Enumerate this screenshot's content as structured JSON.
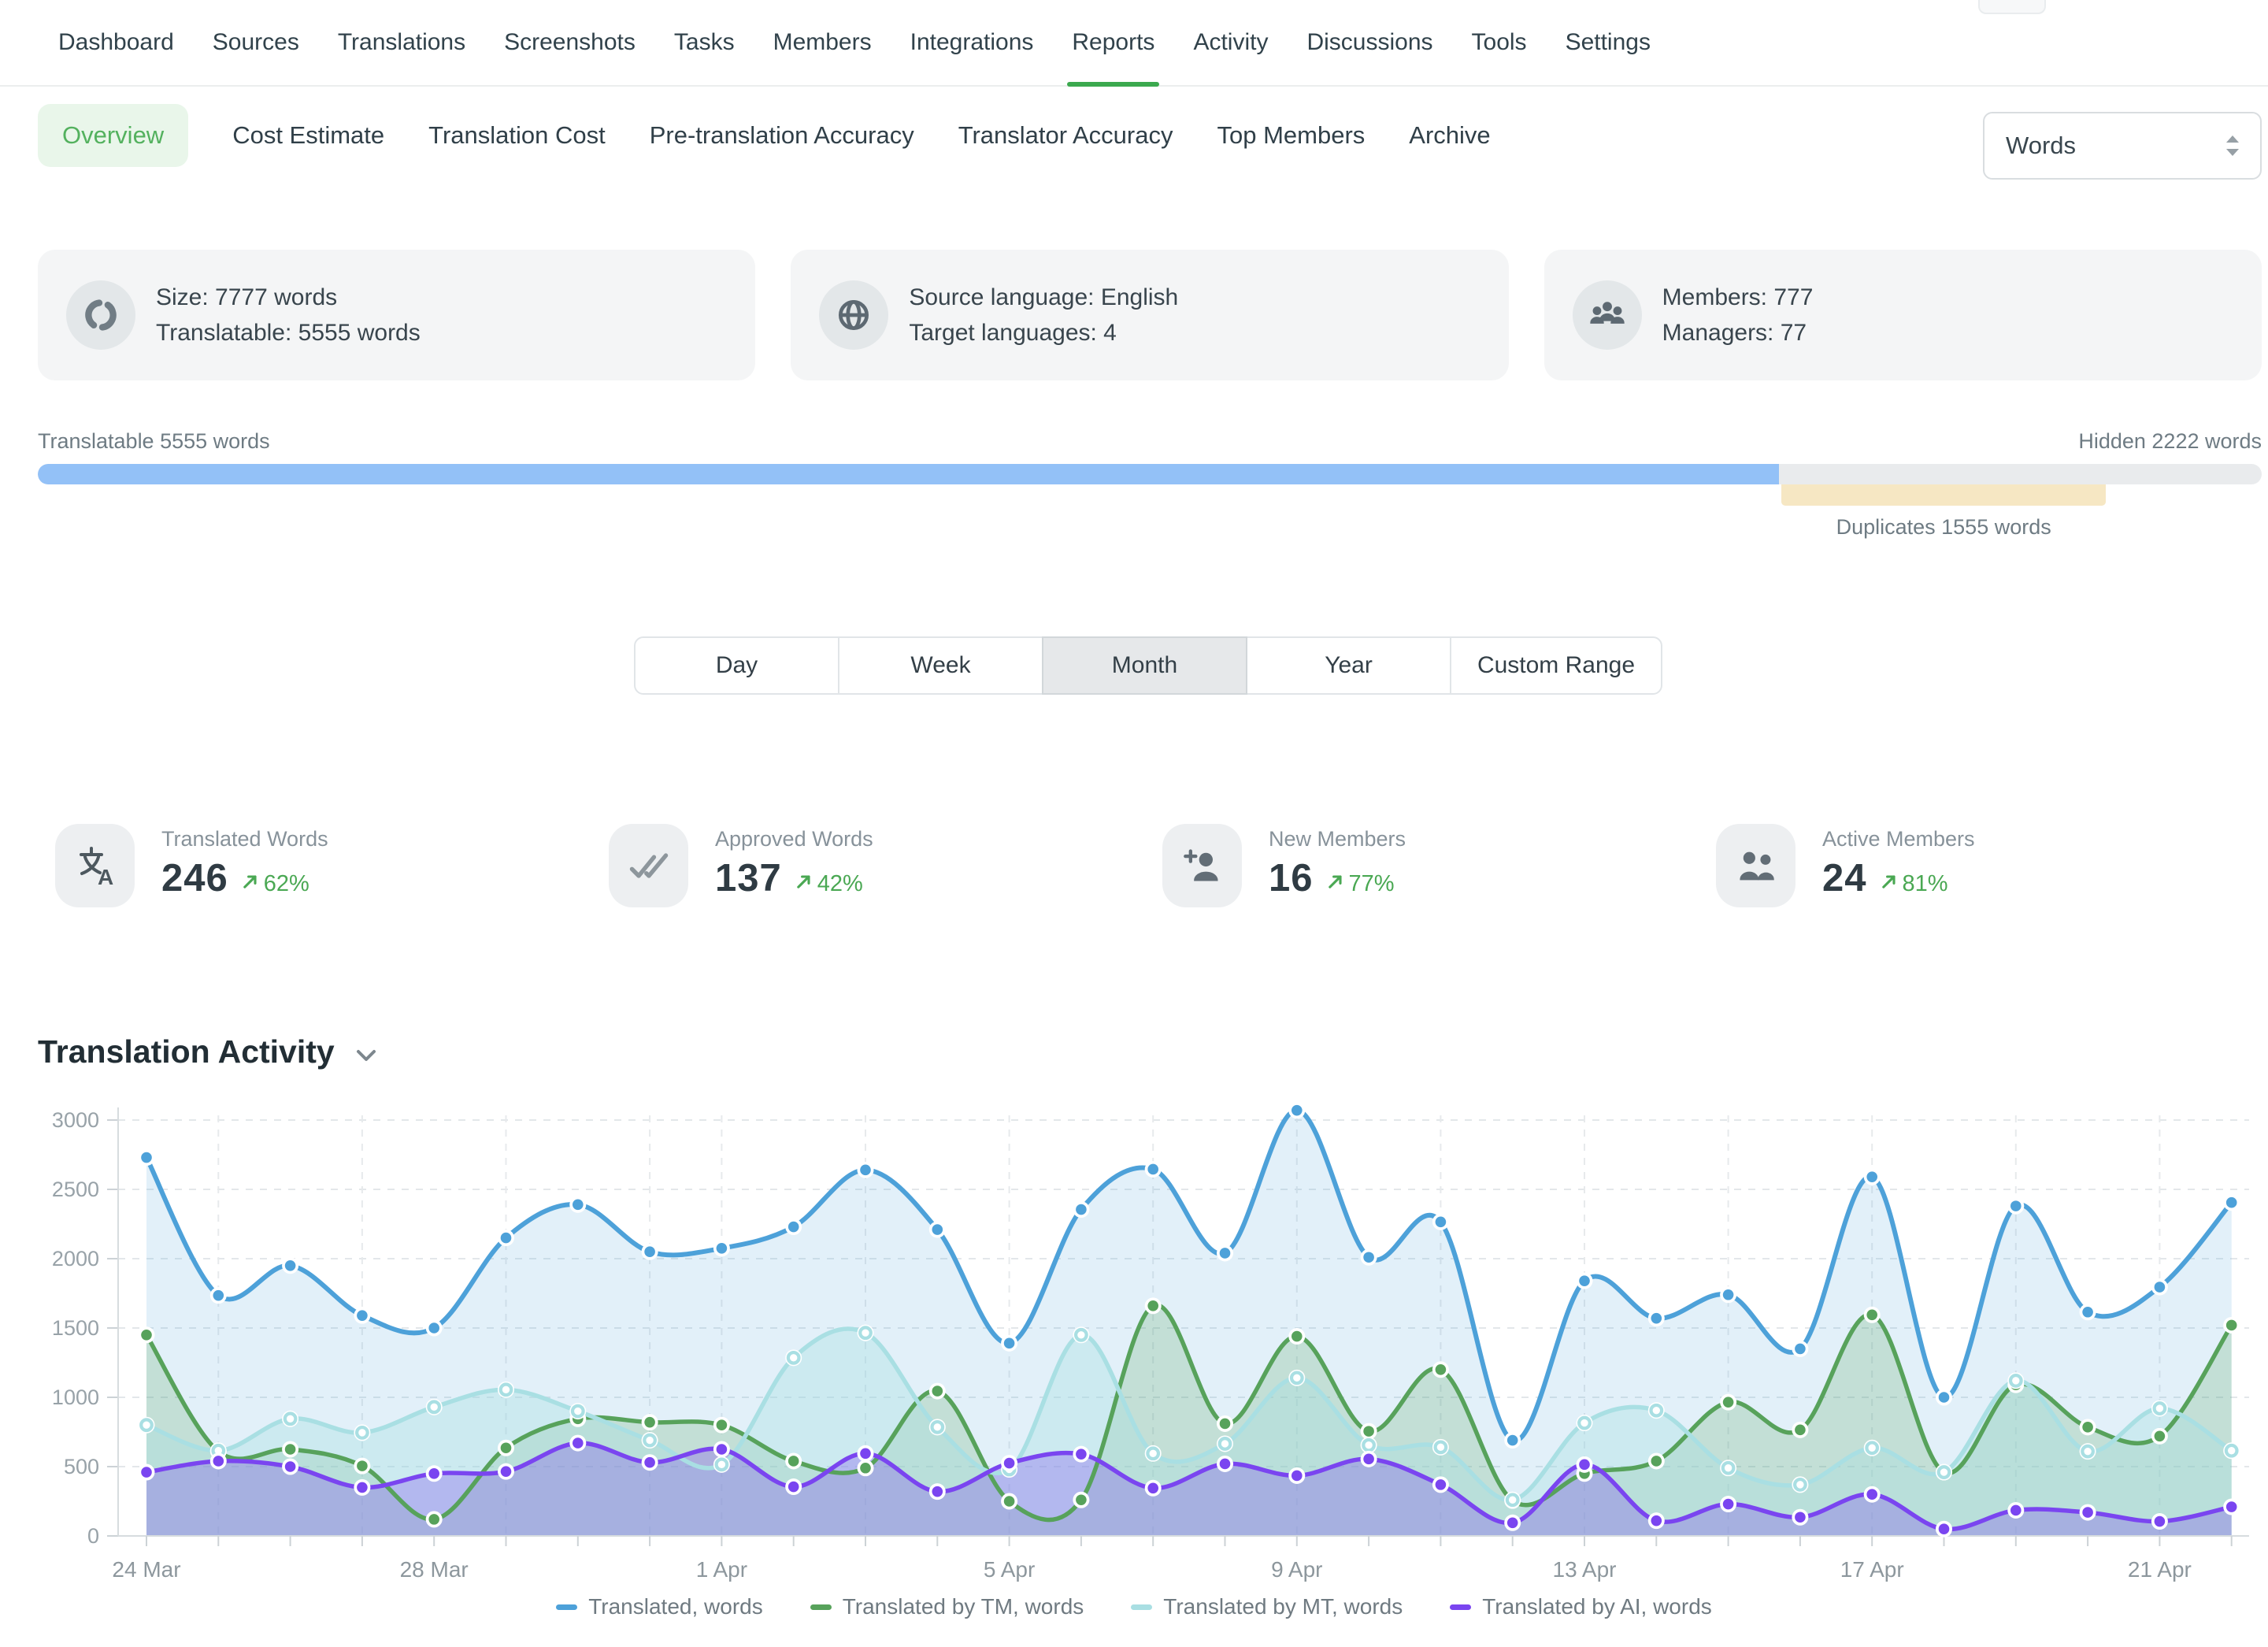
{
  "nav": {
    "items": [
      "Dashboard",
      "Sources",
      "Translations",
      "Screenshots",
      "Tasks",
      "Members",
      "Integrations",
      "Reports",
      "Activity",
      "Discussions",
      "Tools",
      "Settings"
    ],
    "active": "Reports",
    "accent_color": "#3ba94e"
  },
  "subnav": {
    "items": [
      "Overview",
      "Cost Estimate",
      "Translation Cost",
      "Pre-translation Accuracy",
      "Translator Accuracy",
      "Top Members",
      "Archive"
    ],
    "active": "Overview",
    "unit_select": {
      "value": "Words"
    }
  },
  "summary_cards": [
    {
      "icon": "donut-icon",
      "lines": [
        "Size: 7777 words",
        "Translatable: 5555 words"
      ]
    },
    {
      "icon": "globe-icon",
      "lines": [
        "Source language: English",
        "Target languages: 4"
      ]
    },
    {
      "icon": "members-icon",
      "lines": [
        "Members: 777",
        "Managers: 77"
      ]
    }
  ],
  "progress": {
    "left_label": "Translatable 5555 words",
    "right_label": "Hidden 2222 words",
    "duplicates_label": "Duplicates 1555 words",
    "translatable_pct": 78.3,
    "duplicates_start_pct": 78.4,
    "duplicates_end_pct": 93.0,
    "bar_color": "#93c1f7",
    "track_color": "#e9ebed",
    "duplicates_color": "#f6e7c3"
  },
  "range_tabs": {
    "options": [
      "Day",
      "Week",
      "Month",
      "Year",
      "Custom Range"
    ],
    "active": "Month"
  },
  "stats": [
    {
      "icon": "translate-icon",
      "label": "Translated Words",
      "value": "246",
      "change": "62%"
    },
    {
      "icon": "double-check-icon",
      "label": "Approved Words",
      "value": "137",
      "change": "42%"
    },
    {
      "icon": "person-add-icon",
      "label": "New Members",
      "value": "16",
      "change": "77%"
    },
    {
      "icon": "people-icon",
      "label": "Active Members",
      "value": "24",
      "change": "81%"
    }
  ],
  "section": {
    "title": "Translation Activity"
  },
  "chart_data": {
    "type": "area",
    "title": "Translation Activity",
    "x": [
      "24 Mar",
      "25 Mar",
      "26 Mar",
      "27 Mar",
      "28 Mar",
      "29 Mar",
      "30 Mar",
      "31 Mar",
      "1 Apr",
      "2 Apr",
      "3 Apr",
      "4 Apr",
      "5 Apr",
      "6 Apr",
      "7 Apr",
      "8 Apr",
      "9 Apr",
      "10 Apr",
      "11 Apr",
      "12 Apr",
      "13 Apr",
      "14 Apr",
      "15 Apr",
      "16 Apr",
      "17 Apr",
      "18 Apr",
      "19 Apr",
      "20 Apr",
      "21 Apr",
      "22 Apr"
    ],
    "x_axis_labels": [
      "24 Mar",
      "28 Mar",
      "1 Apr",
      "5 Apr",
      "9 Apr",
      "13 Apr",
      "17 Apr",
      "21 Apr"
    ],
    "ylim": [
      0,
      3000
    ],
    "ytick_step": 500,
    "grid": "dashed",
    "legend_position": "bottom",
    "series": [
      {
        "name": "Translated, words",
        "color": "#4da1d9",
        "fill_opacity": 0.16,
        "marker": "solid",
        "values": [
          2730,
          1735,
          1950,
          1590,
          1500,
          2150,
          2390,
          2050,
          2075,
          2230,
          2640,
          2210,
          1390,
          2355,
          2645,
          2040,
          3070,
          2010,
          2265,
          690,
          1840,
          1570,
          1740,
          1350,
          2590,
          1000,
          2380,
          1615,
          1795,
          2405
        ]
      },
      {
        "name": "Translated by TM, words",
        "color": "#57a25b",
        "fill_opacity": 0.22,
        "marker": "solid",
        "values": [
          1450,
          610,
          625,
          505,
          120,
          635,
          845,
          820,
          800,
          540,
          490,
          1045,
          250,
          260,
          1660,
          810,
          1440,
          755,
          1200,
          255,
          450,
          540,
          965,
          765,
          1595,
          460,
          1090,
          785,
          720,
          1520
        ]
      },
      {
        "name": "Translated by MT, words",
        "color": "#a9dfe3",
        "fill_opacity": 0.38,
        "marker": "hollow",
        "values": [
          800,
          615,
          845,
          745,
          930,
          1055,
          900,
          690,
          515,
          1285,
          1465,
          785,
          480,
          1450,
          595,
          665,
          1140,
          655,
          640,
          260,
          815,
          905,
          490,
          370,
          635,
          460,
          1120,
          610,
          920,
          615
        ]
      },
      {
        "name": "Translated by AI, words",
        "color": "#7a45f0",
        "fill_opacity": 0.3,
        "marker": "solid",
        "values": [
          460,
          540,
          500,
          350,
          450,
          465,
          670,
          530,
          625,
          355,
          595,
          320,
          525,
          590,
          345,
          520,
          435,
          555,
          370,
          95,
          515,
          110,
          230,
          135,
          300,
          50,
          185,
          170,
          105,
          210
        ]
      }
    ]
  }
}
